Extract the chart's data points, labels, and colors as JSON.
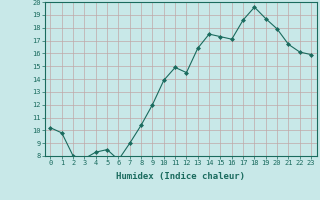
{
  "x": [
    0,
    1,
    2,
    3,
    4,
    5,
    6,
    7,
    8,
    9,
    10,
    11,
    12,
    13,
    14,
    15,
    16,
    17,
    18,
    19,
    20,
    21,
    22,
    23
  ],
  "y": [
    10.2,
    9.8,
    8.0,
    7.8,
    8.3,
    8.5,
    7.7,
    9.0,
    10.4,
    12.0,
    13.9,
    14.9,
    14.5,
    16.4,
    17.5,
    17.3,
    17.1,
    18.6,
    19.6,
    18.7,
    17.9,
    16.7,
    16.1,
    15.9
  ],
  "line_color": "#1a6b5e",
  "marker": "D",
  "marker_size": 2,
  "bg_color": "#c8e8e8",
  "grid_color": "#c0a8a8",
  "xlabel": "Humidex (Indice chaleur)",
  "ylim": [
    8,
    20
  ],
  "xlim": [
    -0.5,
    23.5
  ],
  "yticks": [
    8,
    9,
    10,
    11,
    12,
    13,
    14,
    15,
    16,
    17,
    18,
    19,
    20
  ],
  "xticks": [
    0,
    1,
    2,
    3,
    4,
    5,
    6,
    7,
    8,
    9,
    10,
    11,
    12,
    13,
    14,
    15,
    16,
    17,
    18,
    19,
    20,
    21,
    22,
    23
  ],
  "tick_color": "#1a6b5e",
  "label_color": "#1a6b5e",
  "tick_fontsize": 5.0,
  "xlabel_fontsize": 6.5,
  "linewidth": 0.8
}
